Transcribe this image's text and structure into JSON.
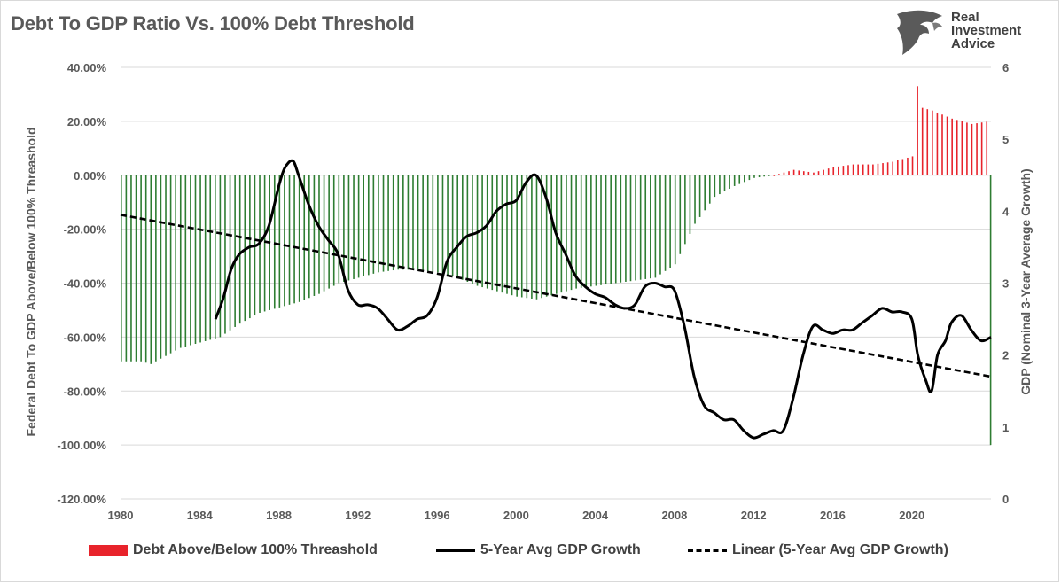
{
  "title": "Debt To GDP Ratio Vs. 100% Debt Threshold",
  "logo": {
    "line1": "Real",
    "line2": "Investment",
    "line3": "Advice",
    "icon": "eagle-head-icon"
  },
  "colors": {
    "above": "#e8232b",
    "below": "#2e7d32",
    "line": "#000000",
    "grid": "#d9d9d9",
    "text": "#595959"
  },
  "chart_data": {
    "type": "bar",
    "title": "Debt To GDP Ratio Vs. 100% Debt Threshold",
    "xlabel": "",
    "ylabel": "Federal Debt To GDP Above/Below 100% Threashold",
    "y2label": "GDP (Nominal 3-Year Average Growth)",
    "xlim": [
      1980,
      2024
    ],
    "ylim": [
      -1.2,
      0.4
    ],
    "y2lim": [
      0,
      6
    ],
    "x_ticks": [
      "1980",
      "1984",
      "1988",
      "1992",
      "1996",
      "2000",
      "2004",
      "2008",
      "2012",
      "2016",
      "2020"
    ],
    "y_ticks": [
      "40.00%",
      "20.00%",
      "0.00%",
      "-20.00%",
      "-40.00%",
      "-60.00%",
      "-80.00%",
      "-100.00%",
      "-120.00%"
    ],
    "y2_ticks": [
      "6",
      "5",
      "4",
      "3",
      "2",
      "1",
      "0"
    ],
    "grid": true,
    "legend_placement": "bottom",
    "legend": [
      "Debt Above/Below 100%  Threashold",
      "5-Year Avg GDP Growth",
      "Linear (5-Year Avg GDP Growth)"
    ],
    "debt_keypoints": [
      [
        1980.0,
        -0.69
      ],
      [
        1981.0,
        -0.69
      ],
      [
        1981.5,
        -0.7
      ],
      [
        1982.0,
        -0.68
      ],
      [
        1983.0,
        -0.64
      ],
      [
        1984.0,
        -0.62
      ],
      [
        1985.0,
        -0.6
      ],
      [
        1986.0,
        -0.55
      ],
      [
        1987.0,
        -0.51
      ],
      [
        1988.0,
        -0.49
      ],
      [
        1989.0,
        -0.47
      ],
      [
        1990.0,
        -0.44
      ],
      [
        1991.0,
        -0.4
      ],
      [
        1992.0,
        -0.38
      ],
      [
        1993.0,
        -0.36
      ],
      [
        1994.0,
        -0.35
      ],
      [
        1995.0,
        -0.35
      ],
      [
        1996.0,
        -0.36
      ],
      [
        1997.0,
        -0.38
      ],
      [
        1998.0,
        -0.41
      ],
      [
        1999.0,
        -0.43
      ],
      [
        2000.0,
        -0.45
      ],
      [
        2001.0,
        -0.46
      ],
      [
        2002.0,
        -0.44
      ],
      [
        2003.0,
        -0.42
      ],
      [
        2004.0,
        -0.41
      ],
      [
        2005.0,
        -0.4
      ],
      [
        2006.0,
        -0.39
      ],
      [
        2007.0,
        -0.38
      ],
      [
        2008.0,
        -0.33
      ],
      [
        2009.0,
        -0.18
      ],
      [
        2010.0,
        -0.08
      ],
      [
        2011.0,
        -0.04
      ],
      [
        2012.0,
        -0.01
      ],
      [
        2013.0,
        0.0
      ],
      [
        2014.0,
        0.02
      ],
      [
        2015.0,
        0.01
      ],
      [
        2016.0,
        0.03
      ],
      [
        2017.0,
        0.04
      ],
      [
        2018.0,
        0.04
      ],
      [
        2019.0,
        0.05
      ],
      [
        2020.0,
        0.07
      ],
      [
        2020.25,
        0.33
      ],
      [
        2020.5,
        0.25
      ],
      [
        2021.0,
        0.24
      ],
      [
        2022.0,
        0.21
      ],
      [
        2023.0,
        0.19
      ],
      [
        2023.9,
        0.2
      ],
      [
        2024.0,
        -1.0
      ]
    ],
    "gdp_growth": [
      [
        1984.8,
        2.5
      ],
      [
        1985.2,
        2.8
      ],
      [
        1985.6,
        3.2
      ],
      [
        1986.0,
        3.4
      ],
      [
        1986.5,
        3.5
      ],
      [
        1987.0,
        3.55
      ],
      [
        1987.5,
        3.8
      ],
      [
        1988.0,
        4.35
      ],
      [
        1988.3,
        4.6
      ],
      [
        1988.7,
        4.7
      ],
      [
        1989.0,
        4.5
      ],
      [
        1989.5,
        4.1
      ],
      [
        1990.0,
        3.8
      ],
      [
        1990.5,
        3.6
      ],
      [
        1991.0,
        3.4
      ],
      [
        1991.5,
        2.9
      ],
      [
        1992.0,
        2.7
      ],
      [
        1992.5,
        2.7
      ],
      [
        1993.0,
        2.65
      ],
      [
        1993.5,
        2.5
      ],
      [
        1994.0,
        2.35
      ],
      [
        1994.5,
        2.4
      ],
      [
        1995.0,
        2.5
      ],
      [
        1995.5,
        2.55
      ],
      [
        1996.0,
        2.8
      ],
      [
        1996.5,
        3.3
      ],
      [
        1997.0,
        3.5
      ],
      [
        1997.5,
        3.65
      ],
      [
        1998.0,
        3.7
      ],
      [
        1998.5,
        3.8
      ],
      [
        1999.0,
        4.0
      ],
      [
        1999.5,
        4.1
      ],
      [
        2000.0,
        4.15
      ],
      [
        2000.5,
        4.4
      ],
      [
        2001.0,
        4.5
      ],
      [
        2001.5,
        4.2
      ],
      [
        2002.0,
        3.7
      ],
      [
        2002.5,
        3.4
      ],
      [
        2003.0,
        3.1
      ],
      [
        2003.5,
        2.95
      ],
      [
        2004.0,
        2.85
      ],
      [
        2004.5,
        2.8
      ],
      [
        2005.0,
        2.7
      ],
      [
        2005.5,
        2.65
      ],
      [
        2006.0,
        2.7
      ],
      [
        2006.5,
        2.95
      ],
      [
        2007.0,
        3.0
      ],
      [
        2007.5,
        2.95
      ],
      [
        2008.0,
        2.9
      ],
      [
        2008.5,
        2.4
      ],
      [
        2009.0,
        1.7
      ],
      [
        2009.5,
        1.3
      ],
      [
        2010.0,
        1.2
      ],
      [
        2010.5,
        1.1
      ],
      [
        2011.0,
        1.1
      ],
      [
        2011.5,
        0.95
      ],
      [
        2012.0,
        0.85
      ],
      [
        2012.5,
        0.9
      ],
      [
        2013.0,
        0.95
      ],
      [
        2013.5,
        0.95
      ],
      [
        2014.0,
        1.4
      ],
      [
        2014.5,
        2.0
      ],
      [
        2015.0,
        2.4
      ],
      [
        2015.5,
        2.35
      ],
      [
        2016.0,
        2.3
      ],
      [
        2016.5,
        2.35
      ],
      [
        2017.0,
        2.35
      ],
      [
        2017.5,
        2.45
      ],
      [
        2018.0,
        2.55
      ],
      [
        2018.5,
        2.65
      ],
      [
        2019.0,
        2.6
      ],
      [
        2019.5,
        2.6
      ],
      [
        2020.0,
        2.5
      ],
      [
        2020.3,
        2.0
      ],
      [
        2020.7,
        1.65
      ],
      [
        2021.0,
        1.5
      ],
      [
        2021.3,
        2.0
      ],
      [
        2021.7,
        2.2
      ],
      [
        2022.0,
        2.45
      ],
      [
        2022.5,
        2.55
      ],
      [
        2023.0,
        2.35
      ],
      [
        2023.5,
        2.2
      ],
      [
        2024.0,
        2.25
      ]
    ],
    "trend": [
      [
        1980.0,
        3.95
      ],
      [
        2024.0,
        1.7
      ]
    ]
  }
}
